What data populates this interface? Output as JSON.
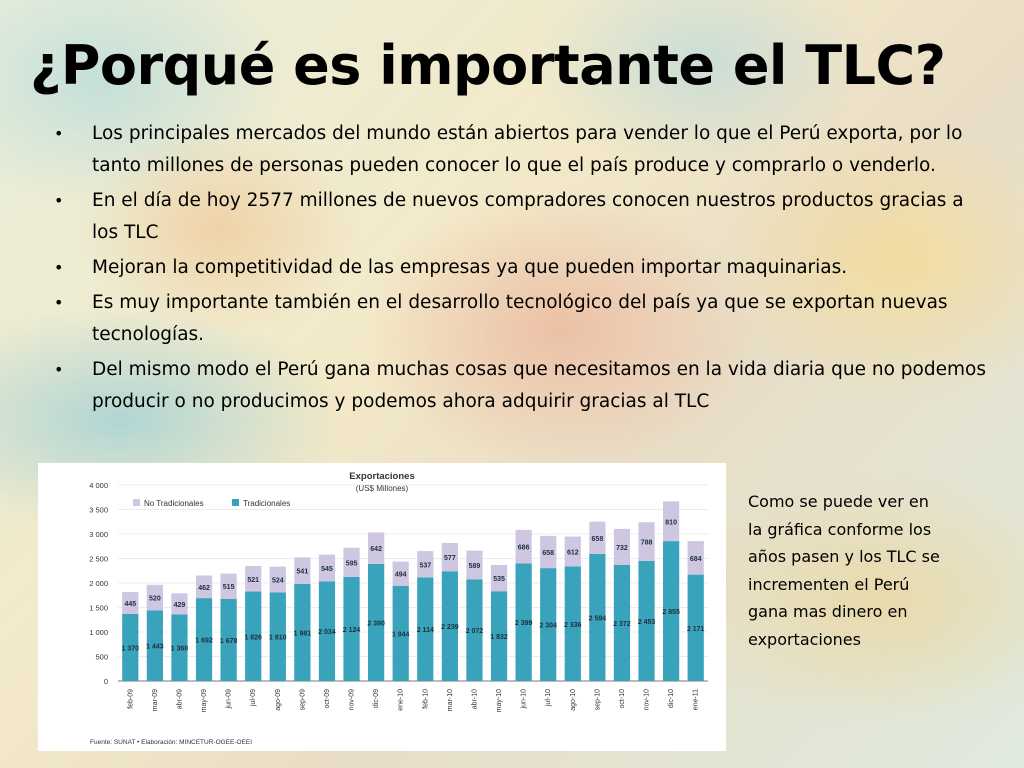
{
  "slide": {
    "title": "¿Porqué es importante el TLC?",
    "bullets": [
      "Los principales mercados del mundo están abiertos para vender lo que el Perú exporta, por lo tanto millones de personas pueden conocer lo que el país produce y comprarlo o venderlo.",
      "En el día de hoy 2577 millones de nuevos compradores conocen nuestros productos gracias a los TLC",
      "Mejoran la competitividad de las empresas ya que pueden importar maquinarias.",
      "Es muy importante también en el desarrollo tecnológico del país ya que se exportan nuevas tecnologías.",
      "Del mismo modo el Perú gana muchas cosas que necesitamos en la vida diaria que no podemos producir o no producimos y podemos ahora adquirir gracias al TLC"
    ],
    "caption": "Como se puede ver en la gráfica conforme los años pasen y los TLC se incrementen el Perú gana mas dinero en exportaciones"
  },
  "colors": {
    "tradicionales": "#3aa3bc",
    "no_tradicionales": "#cfc7e2",
    "axis": "#555555"
  },
  "chart_data": {
    "type": "bar",
    "stacked": true,
    "title": "Exportaciones",
    "subtitle": "(US$ Millones)",
    "source": "Fuente: SUNAT • Elaboración: MINCETUR-OGEE-OEEI",
    "categories": [
      "feb-09",
      "mar-09",
      "abr-09",
      "may-09",
      "jun-09",
      "jul-09",
      "ago-09",
      "sep-09",
      "oct-09",
      "nov-09",
      "dic-09",
      "ene-10",
      "feb-10",
      "mar-10",
      "abr-10",
      "may-10",
      "jun-10",
      "jul-10",
      "ago-10",
      "sep-10",
      "oct-10",
      "nov-10",
      "dic-10",
      "ene-11"
    ],
    "series": [
      {
        "name": "Tradicionales",
        "values": [
          1370,
          1443,
          1360,
          1692,
          1678,
          1826,
          1810,
          1981,
          2034,
          2124,
          2390,
          1944,
          2114,
          2239,
          2072,
          1832,
          2399,
          2304,
          2336,
          2594,
          2372,
          2453,
          2855,
          2171
        ]
      },
      {
        "name": "No Tradicionales",
        "values": [
          445,
          520,
          429,
          462,
          515,
          521,
          524,
          541,
          545,
          595,
          642,
          494,
          537,
          577,
          589,
          535,
          686,
          658,
          612,
          658,
          732,
          788,
          810,
          684
        ]
      }
    ],
    "yticks": [
      "0",
      "500",
      "1 000",
      "1 500",
      "2 000",
      "2 500",
      "3 000",
      "3 500",
      "4 000"
    ],
    "ylim": [
      0,
      4000
    ],
    "legend": "top-left",
    "grid": true
  }
}
